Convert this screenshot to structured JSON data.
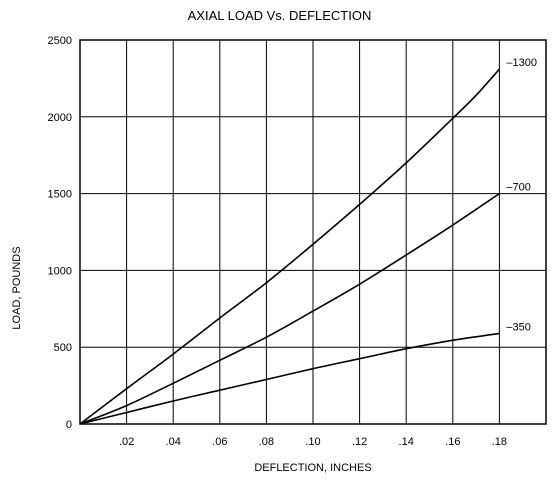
{
  "chart_data": {
    "type": "line",
    "title": "AXIAL LOAD Vs. DEFLECTION",
    "xlabel": "DEFLECTION, INCHES",
    "ylabel": "LOAD, POUNDS",
    "xlim": [
      0,
      0.2
    ],
    "ylim": [
      0,
      2500
    ],
    "x_ticks": [
      ".02",
      ".04",
      ".06",
      ".08",
      ".10",
      ".12",
      ".14",
      ".16",
      ".18"
    ],
    "x_tick_values": [
      0.02,
      0.04,
      0.06,
      0.08,
      0.1,
      0.12,
      0.14,
      0.16,
      0.18
    ],
    "y_ticks": [
      "0",
      "500",
      "1000",
      "1500",
      "2000",
      "2500"
    ],
    "y_tick_values": [
      0,
      500,
      1000,
      1500,
      2000,
      2500
    ],
    "grid": true,
    "series": [
      {
        "name": "–1300",
        "x": [
          0,
          0.02,
          0.04,
          0.06,
          0.08,
          0.1,
          0.12,
          0.14,
          0.16,
          0.17,
          0.18
        ],
        "y": [
          0,
          230,
          455,
          690,
          920,
          1170,
          1430,
          1700,
          1990,
          2140,
          2310
        ]
      },
      {
        "name": "–700",
        "x": [
          0,
          0.02,
          0.04,
          0.06,
          0.08,
          0.1,
          0.12,
          0.14,
          0.16,
          0.18
        ],
        "y": [
          0,
          120,
          265,
          415,
          565,
          735,
          910,
          1100,
          1295,
          1500
        ]
      },
      {
        "name": "–350",
        "x": [
          0,
          0.02,
          0.04,
          0.06,
          0.08,
          0.1,
          0.12,
          0.14,
          0.16,
          0.18
        ],
        "y": [
          0,
          75,
          150,
          220,
          290,
          360,
          425,
          490,
          545,
          590
        ]
      }
    ]
  }
}
